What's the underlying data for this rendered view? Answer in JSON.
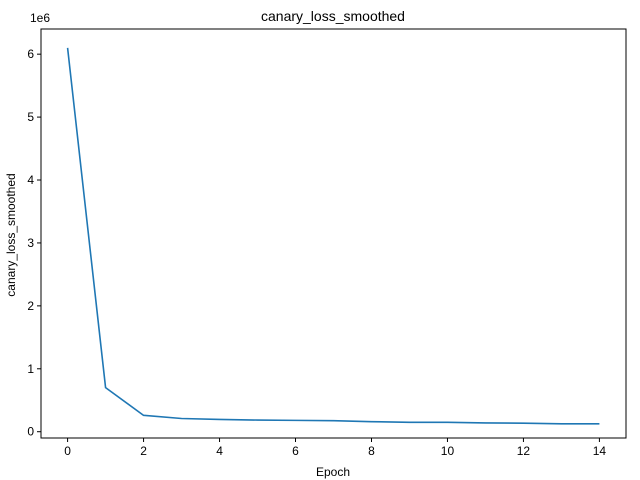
{
  "chart_data": {
    "type": "line",
    "title": "canary_loss_smoothed",
    "xlabel": "Epoch",
    "ylabel": "canary_loss_smoothed",
    "y_offset_label": "1e6",
    "xlim": [
      -0.7,
      14.7
    ],
    "ylim": [
      -0.1,
      6.4
    ],
    "x_ticks": [
      0,
      2,
      4,
      6,
      8,
      10,
      12,
      14
    ],
    "y_ticks": [
      0,
      1,
      2,
      3,
      4,
      5,
      6
    ],
    "grid": false,
    "colors": {
      "series": "#1f77b4"
    },
    "series": [
      {
        "x": [
          0,
          1,
          2,
          3,
          4,
          5,
          6,
          7,
          8,
          9,
          10,
          11,
          12,
          13,
          14
        ],
        "values": [
          6.1,
          0.7,
          0.26,
          0.21,
          0.195,
          0.185,
          0.18,
          0.175,
          0.16,
          0.15,
          0.15,
          0.14,
          0.135,
          0.125,
          0.125
        ]
      }
    ]
  }
}
